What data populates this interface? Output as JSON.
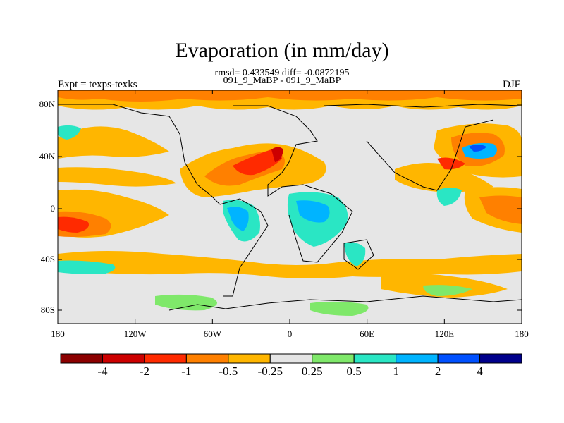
{
  "title": "Evaporation (in mm/day)",
  "stats_line": "rmsd= 0.433549 diff= -0.0872195",
  "cases_line": "091_9_MaBP - 091_9_MaBP",
  "left_label": "Expt = texps-texks",
  "right_label": "DJF",
  "x_ticks": [
    "180",
    "120W",
    "60W",
    "0",
    "60E",
    "120E",
    "180"
  ],
  "y_ticks": [
    "80N",
    "40N",
    "0",
    "40S",
    "80S"
  ],
  "colorbar": {
    "colors": [
      "#8b0000",
      "#cc0000",
      "#ff2a00",
      "#ff8000",
      "#ffb600",
      "#e5e5e5",
      "#7fe86a",
      "#2ae6c4",
      "#00b4ff",
      "#0050ff",
      "#00008b"
    ],
    "labels": [
      "-4",
      "-2",
      "-1",
      "-0.5",
      "-0.25",
      "0.25",
      "0.5",
      "1",
      "2",
      "4"
    ]
  }
}
